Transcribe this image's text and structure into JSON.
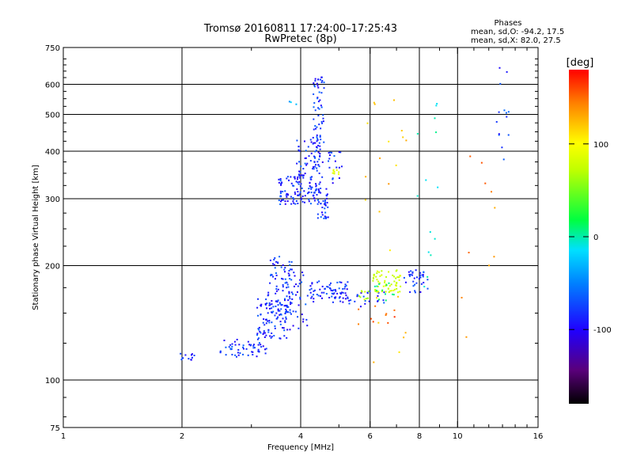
{
  "chart_data": {
    "type": "scatter",
    "title": "Tromsø 20160811 17:24:00–17:25:43",
    "subtitle": "RwPretec (8p)",
    "stats": {
      "heading": "Phases",
      "line_o": "mean, sd,O: -94.2, 17.5",
      "line_x": "mean, sd,X:  82.0, 27.5"
    },
    "xlabel": "Frequency [MHz]",
    "ylabel": "Stationary phase Virtual Height [km]",
    "x_scale": "log",
    "y_scale": "log",
    "xlim": [
      1,
      16
    ],
    "ylim": [
      75,
      750
    ],
    "x_ticks": [
      1,
      2,
      4,
      6,
      8,
      10,
      16
    ],
    "x_tick_labels": [
      "1",
      "2",
      "4",
      "6",
      "8",
      "10",
      "16"
    ],
    "y_ticks": [
      75,
      100,
      200,
      300,
      400,
      500,
      600,
      750
    ],
    "y_tick_labels": [
      "75",
      "100",
      "200",
      "300",
      "400",
      "500",
      "600",
      "750"
    ],
    "grid_x": [
      2,
      4,
      6,
      8,
      10
    ],
    "grid_y": [
      100,
      200,
      300,
      400,
      500,
      600
    ],
    "colorbar": {
      "label": "[deg]",
      "range": [
        -180,
        180
      ],
      "ticks": [
        100,
        0,
        -100
      ],
      "tick_labels": [
        "100",
        "0",
        "-100"
      ]
    },
    "clusters": [
      {
        "x": [
          1.95,
          2.15
        ],
        "y": [
          112,
          118
        ],
        "n": 12,
        "phase": -100
      },
      {
        "x": [
          2.5,
          3.3
        ],
        "y": [
          115,
          128
        ],
        "n": 55,
        "phase": -100
      },
      {
        "x": [
          3.1,
          3.7
        ],
        "y": [
          128,
          165
        ],
        "n": 95,
        "phase": -100
      },
      {
        "x": [
          3.3,
          3.8
        ],
        "y": [
          150,
          212
        ],
        "n": 75,
        "phase": -100
      },
      {
        "x": [
          3.7,
          4.2
        ],
        "y": [
          135,
          200
        ],
        "n": 40,
        "phase": -100
      },
      {
        "x": [
          4.2,
          5.3
        ],
        "y": [
          160,
          182
        ],
        "n": 70,
        "phase": -100
      },
      {
        "x": [
          5.2,
          6.6
        ],
        "y": [
          155,
          172
        ],
        "n": 25,
        "phase": -100
      },
      {
        "x": [
          5.6,
          6.0
        ],
        "y": [
          160,
          172
        ],
        "n": 10,
        "phase": 60
      },
      {
        "x": [
          6.1,
          7.2
        ],
        "y": [
          170,
          195
        ],
        "n": 60,
        "phase": 70
      },
      {
        "x": [
          6.1,
          7.4
        ],
        "y": [
          160,
          180
        ],
        "n": 12,
        "phase": -10
      },
      {
        "x": [
          7.3,
          8.4
        ],
        "y": [
          170,
          195
        ],
        "n": 35,
        "phase": -100
      },
      {
        "x": [
          5.6,
          7.3
        ],
        "y": [
          140,
          158
        ],
        "n": 10,
        "phase": 150
      },
      {
        "x": [
          3.5,
          4.0
        ],
        "y": [
          290,
          345
        ],
        "n": 60,
        "phase": -100
      },
      {
        "x": [
          4.0,
          4.7
        ],
        "y": [
          290,
          320
        ],
        "n": 50,
        "phase": -100
      },
      {
        "x": [
          3.9,
          4.55
        ],
        "y": [
          320,
          430
        ],
        "n": 85,
        "phase": -100
      },
      {
        "x": [
          4.3,
          4.6
        ],
        "y": [
          420,
          630
        ],
        "n": 55,
        "phase": -100
      },
      {
        "x": [
          4.4,
          4.7
        ],
        "y": [
          265,
          295
        ],
        "n": 22,
        "phase": -100
      },
      {
        "x": [
          4.7,
          5.1
        ],
        "y": [
          320,
          400
        ],
        "n": 18,
        "phase": -100
      },
      {
        "x": [
          4.8,
          5.0
        ],
        "y": [
          345,
          360
        ],
        "n": 8,
        "phase": 80
      },
      {
        "x": [
          3.5,
          3.9
        ],
        "y": [
          530,
          545
        ],
        "n": 3,
        "phase": -60
      },
      {
        "x": [
          12.5,
          13.5
        ],
        "y": [
          380,
          680
        ],
        "n": 14,
        "phase": -100
      },
      {
        "x": [
          5.7,
          7.5
        ],
        "y": [
          95,
          560
        ],
        "n": 22,
        "phase": 120
      },
      {
        "x": [
          7.8,
          9.0
        ],
        "y": [
          90,
          650
        ],
        "n": 14,
        "phase": -30
      },
      {
        "x": [
          9.5,
          12.5
        ],
        "y": [
          100,
          400
        ],
        "n": 10,
        "phase": 140
      }
    ]
  }
}
